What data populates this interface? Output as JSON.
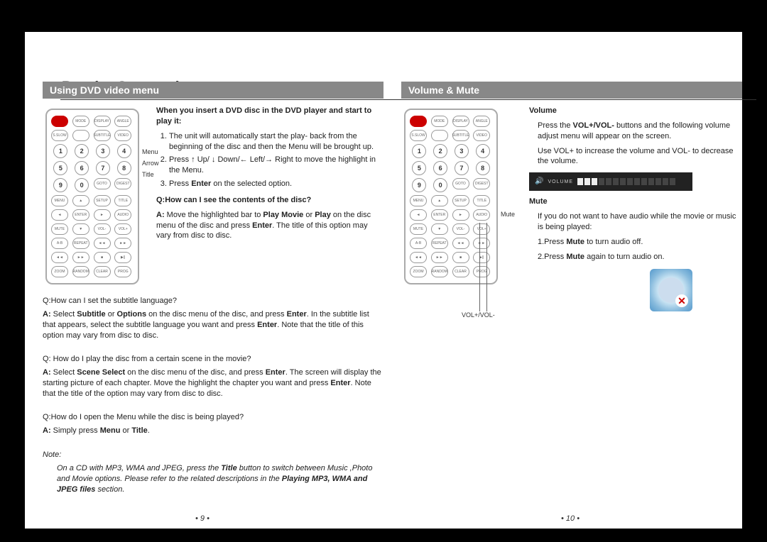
{
  "page_title": "Basic Operations",
  "left": {
    "section": "Using DVD video menu",
    "callouts": [
      "Menu",
      "Arrow",
      "Title"
    ],
    "intro": "When you insert a DVD disc in the DVD player and start to play it:",
    "steps": [
      "The unit will automatically start the play- back from the beginning of the disc and then the Menu will be brought up.",
      "Press ↑ Up/ ↓ Down/← Left/→ Right to move the highlight in the Menu.",
      "Press Enter on the selected option."
    ],
    "q1": "Q:How can I see the contents of the disc?",
    "a1": "A: Move the highlighted bar to Play Movie or Play on the disc menu of the disc and press Enter. The title of this option may vary from disc to disc.",
    "q2": "Q:How can I set the subtitle language?",
    "a2": "A: Select Subtitle or Options on the disc menu of the disc, and press Enter. In the subtitle list that appears, select the subtitle language you want and press Enter. Note that the title of this option may vary from disc to disc.",
    "q3": "Q: How do I play the disc from a certain scene in the movie?",
    "a3": "A: Select Scene Select on the disc menu of the disc, and press Enter. The screen will display the starting picture of each chapter. Move the highlight the chapter you want and press Enter. Note that the title of the option may vary from disc to disc.",
    "q4": "Q:How do I open the Menu while the disc is being played?",
    "a4": "A: Simply press Menu or Title.",
    "note_label": "Note:",
    "note": "On a CD with MP3, WMA and JPEG, press the Title button to switch between Music ,Photo and Movie options. Please refer to the related descriptions in the Playing MP3, WMA and JPEG files section.",
    "page_num": "•  9  •"
  },
  "right": {
    "section": "Volume & Mute",
    "callouts": [
      "Mute",
      "VOL+/VOL-"
    ],
    "vol_label": "Volume",
    "vol_text1": "Press the VOL+/VOL- buttons and the following volume adjust menu will appear on the screen.",
    "vol_text2": "Use VOL+ to increase the volume and VOL- to decrease the volume.",
    "volume_bar": {
      "label": "VOLUME",
      "segments": 14,
      "on": 3
    },
    "mute_label": "Mute",
    "mute_text1": "If you do not want to have audio while the movie or music is being played:",
    "mute_text2": "1.Press Mute to turn audio off.",
    "mute_text3": "2.Press Mute again to turn audio on.",
    "page_num": "•  10  •"
  },
  "remote": {
    "row_labels": [
      [
        "",
        "MODE",
        "DISPLAY",
        "ANGLE"
      ],
      [
        "S.SLOW",
        "",
        "SUBTITLE",
        "VIDEO"
      ],
      [
        "1",
        "2",
        "3",
        "4"
      ],
      [
        "5",
        "6",
        "7",
        "8"
      ],
      [
        "9",
        "0",
        "GOTO",
        "DIGEST"
      ],
      [
        "MENU",
        "▲",
        "SETUP",
        "TITLE"
      ],
      [
        "◄",
        "ENTER",
        "►",
        "AUDIO"
      ],
      [
        "MUTE",
        "▼",
        "VOL-",
        "VOL+"
      ],
      [
        "A-B",
        "REPEAT",
        "◄◄",
        "►►"
      ],
      [
        "◄◄",
        "►►",
        "■",
        "▶||"
      ],
      [
        "ZOOM",
        "RANDOM",
        "CLEAR",
        "PROG"
      ]
    ]
  },
  "colors": {
    "section_bg": "#888888",
    "red": "#cc0000",
    "text": "#222222"
  }
}
